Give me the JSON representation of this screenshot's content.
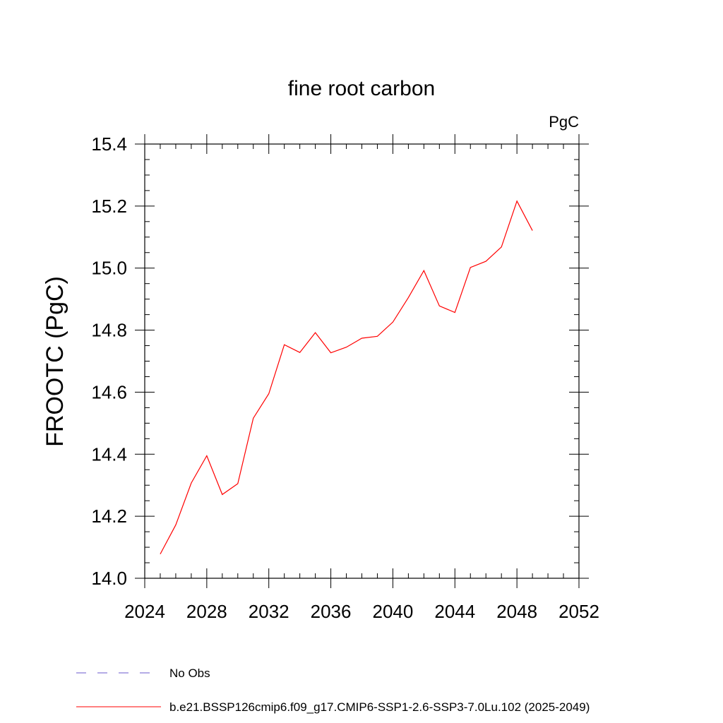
{
  "chart_data": {
    "type": "line",
    "title": "fine root carbon",
    "units": "PgC",
    "ylabel": "FROOTC  (PgC)",
    "xlabel": "",
    "xlim": [
      2024,
      2052
    ],
    "ylim": [
      14.0,
      15.4
    ],
    "xticks": [
      "2024",
      "2028",
      "2032",
      "2036",
      "2040",
      "2044",
      "2048",
      "2052"
    ],
    "yticks": [
      "14.0",
      "14.2",
      "14.4",
      "14.6",
      "14.8",
      "15.0",
      "15.2",
      "15.4"
    ],
    "grid": false,
    "legend_position": "bottom",
    "x": [
      2025,
      2026,
      2027,
      2028,
      2029,
      2030,
      2031,
      2032,
      2033,
      2034,
      2035,
      2036,
      2037,
      2038,
      2039,
      2040,
      2041,
      2042,
      2043,
      2044,
      2045,
      2046,
      2047,
      2048,
      2049
    ],
    "series": [
      {
        "name": "b.e21.BSSP126cmip6.f09_g17.CMIP6-SSP1-2.6-SSP3-7.0Lu.102 (2025-2049)",
        "color": "#ff0000",
        "values": [
          14.078,
          14.172,
          14.307,
          14.395,
          14.27,
          14.305,
          14.516,
          14.595,
          14.753,
          14.728,
          14.792,
          14.727,
          14.745,
          14.774,
          14.78,
          14.826,
          14.905,
          14.992,
          14.878,
          14.857,
          15.002,
          15.022,
          15.068,
          15.216,
          15.121
        ]
      }
    ],
    "legend": [
      {
        "label": "No Obs",
        "color": "#6a5acd",
        "style": "dashed"
      },
      {
        "label": "b.e21.BSSP126cmip6.f09_g17.CMIP6-SSP1-2.6-SSP3-7.0Lu.102 (2025-2049)",
        "color": "#ff0000",
        "style": "solid"
      }
    ]
  }
}
